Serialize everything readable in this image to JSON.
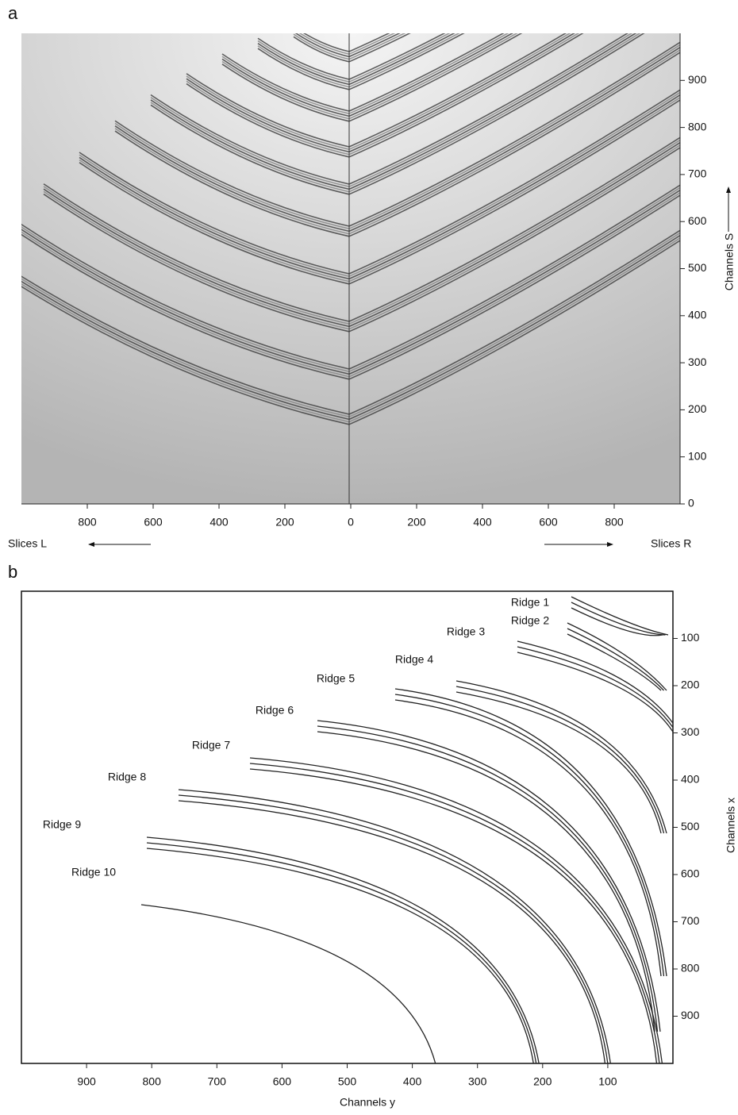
{
  "chart_data": [
    {
      "type": "image",
      "panel_label": "a",
      "y_label": "Channels S",
      "side_labels": [
        "Slices L",
        "Slices R"
      ],
      "xlim": [
        -1000,
        1000
      ],
      "ylim": [
        0,
        1000
      ],
      "xticks": [
        {
          "value": -800,
          "label": "800"
        },
        {
          "value": -600,
          "label": "600"
        },
        {
          "value": -400,
          "label": "400"
        },
        {
          "value": -200,
          "label": "200"
        },
        0,
        200,
        400,
        600,
        800
      ],
      "yticks": [
        0,
        100,
        200,
        300,
        400,
        500,
        600,
        700,
        800,
        900
      ]
    },
    {
      "type": "image",
      "panel_label": "b",
      "x_label": "Channels y",
      "y_label": "Channels x",
      "xlim": [
        1000,
        0
      ],
      "ylim": [
        0,
        1000
      ],
      "y_inverted": true,
      "xticks": [
        900,
        800,
        700,
        600,
        500,
        400,
        300,
        200,
        100
      ],
      "yticks": [
        100,
        200,
        300,
        400,
        500,
        600,
        700,
        800,
        900
      ],
      "annotations": [
        "Ridge 1",
        "Ridge 2",
        "Ridge 3",
        "Ridge 4",
        "Ridge 5",
        "Ridge 6",
        "Ridge 7",
        "Ridge 8",
        "Ridge 9",
        "Ridge 10"
      ]
    }
  ]
}
